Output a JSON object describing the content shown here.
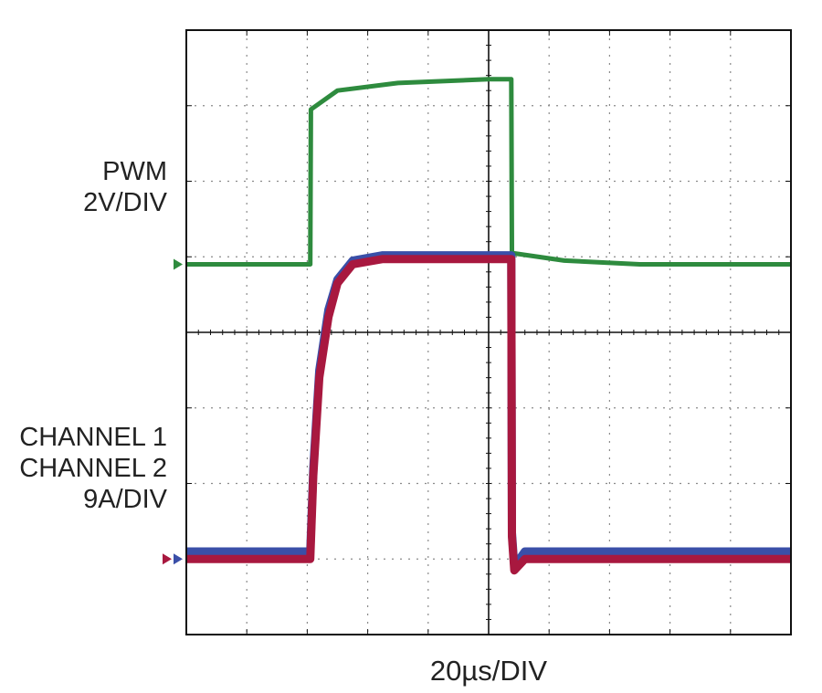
{
  "chart_data": {
    "type": "line",
    "title": "",
    "xlabel": "20µs/DIV",
    "x_unit": "µs",
    "x_per_div": 20,
    "divisions": {
      "x": 10,
      "y": 8
    },
    "xlim": [
      0,
      200
    ],
    "grid": true,
    "left_labels": [
      {
        "lines": [
          "PWM",
          "2V/DIV"
        ]
      },
      {
        "lines": [
          "CHANNEL 1",
          "CHANNEL 2",
          "9A/DIV"
        ]
      }
    ],
    "series": [
      {
        "name": "PWM",
        "color": "#2e8b3e",
        "scale": "2V/DIV",
        "ground_div": 4.9,
        "points": [
          {
            "x": 0,
            "div": 0
          },
          {
            "x": 41,
            "div": 0
          },
          {
            "x": 41.2,
            "div": 2.05
          },
          {
            "x": 50,
            "div": 2.3
          },
          {
            "x": 70,
            "div": 2.4
          },
          {
            "x": 100,
            "div": 2.45
          },
          {
            "x": 107.5,
            "div": 2.45
          },
          {
            "x": 107.7,
            "div": 0.15
          },
          {
            "x": 125,
            "div": 0.05
          },
          {
            "x": 150,
            "div": 0
          },
          {
            "x": 200,
            "div": 0
          }
        ]
      },
      {
        "name": "CHANNEL 2",
        "color": "#3a4fa8",
        "scale": "9A/DIV",
        "ground_div": 1.0,
        "points": [
          {
            "x": 0,
            "div": 0.1
          },
          {
            "x": 41,
            "div": 0.1
          },
          {
            "x": 42,
            "div": 1.2
          },
          {
            "x": 44,
            "div": 2.5
          },
          {
            "x": 47,
            "div": 3.3
          },
          {
            "x": 50,
            "div": 3.7
          },
          {
            "x": 55,
            "div": 3.95
          },
          {
            "x": 65,
            "div": 4.02
          },
          {
            "x": 107.5,
            "div": 4.02
          },
          {
            "x": 107.7,
            "div": 0.35
          },
          {
            "x": 108.5,
            "div": -0.1
          },
          {
            "x": 112,
            "div": 0.1
          },
          {
            "x": 200,
            "div": 0.1
          }
        ]
      },
      {
        "name": "CHANNEL 1",
        "color": "#a8183f",
        "scale": "9A/DIV",
        "ground_div": 1.0,
        "points": [
          {
            "x": 0,
            "div": 0
          },
          {
            "x": 41,
            "div": 0
          },
          {
            "x": 42,
            "div": 1.1
          },
          {
            "x": 44,
            "div": 2.4
          },
          {
            "x": 47,
            "div": 3.2
          },
          {
            "x": 50,
            "div": 3.65
          },
          {
            "x": 55,
            "div": 3.9
          },
          {
            "x": 65,
            "div": 3.97
          },
          {
            "x": 107.5,
            "div": 3.97
          },
          {
            "x": 107.7,
            "div": 0.3
          },
          {
            "x": 108.5,
            "div": -0.15
          },
          {
            "x": 112,
            "div": 0
          },
          {
            "x": 200,
            "div": 0
          }
        ]
      }
    ]
  }
}
